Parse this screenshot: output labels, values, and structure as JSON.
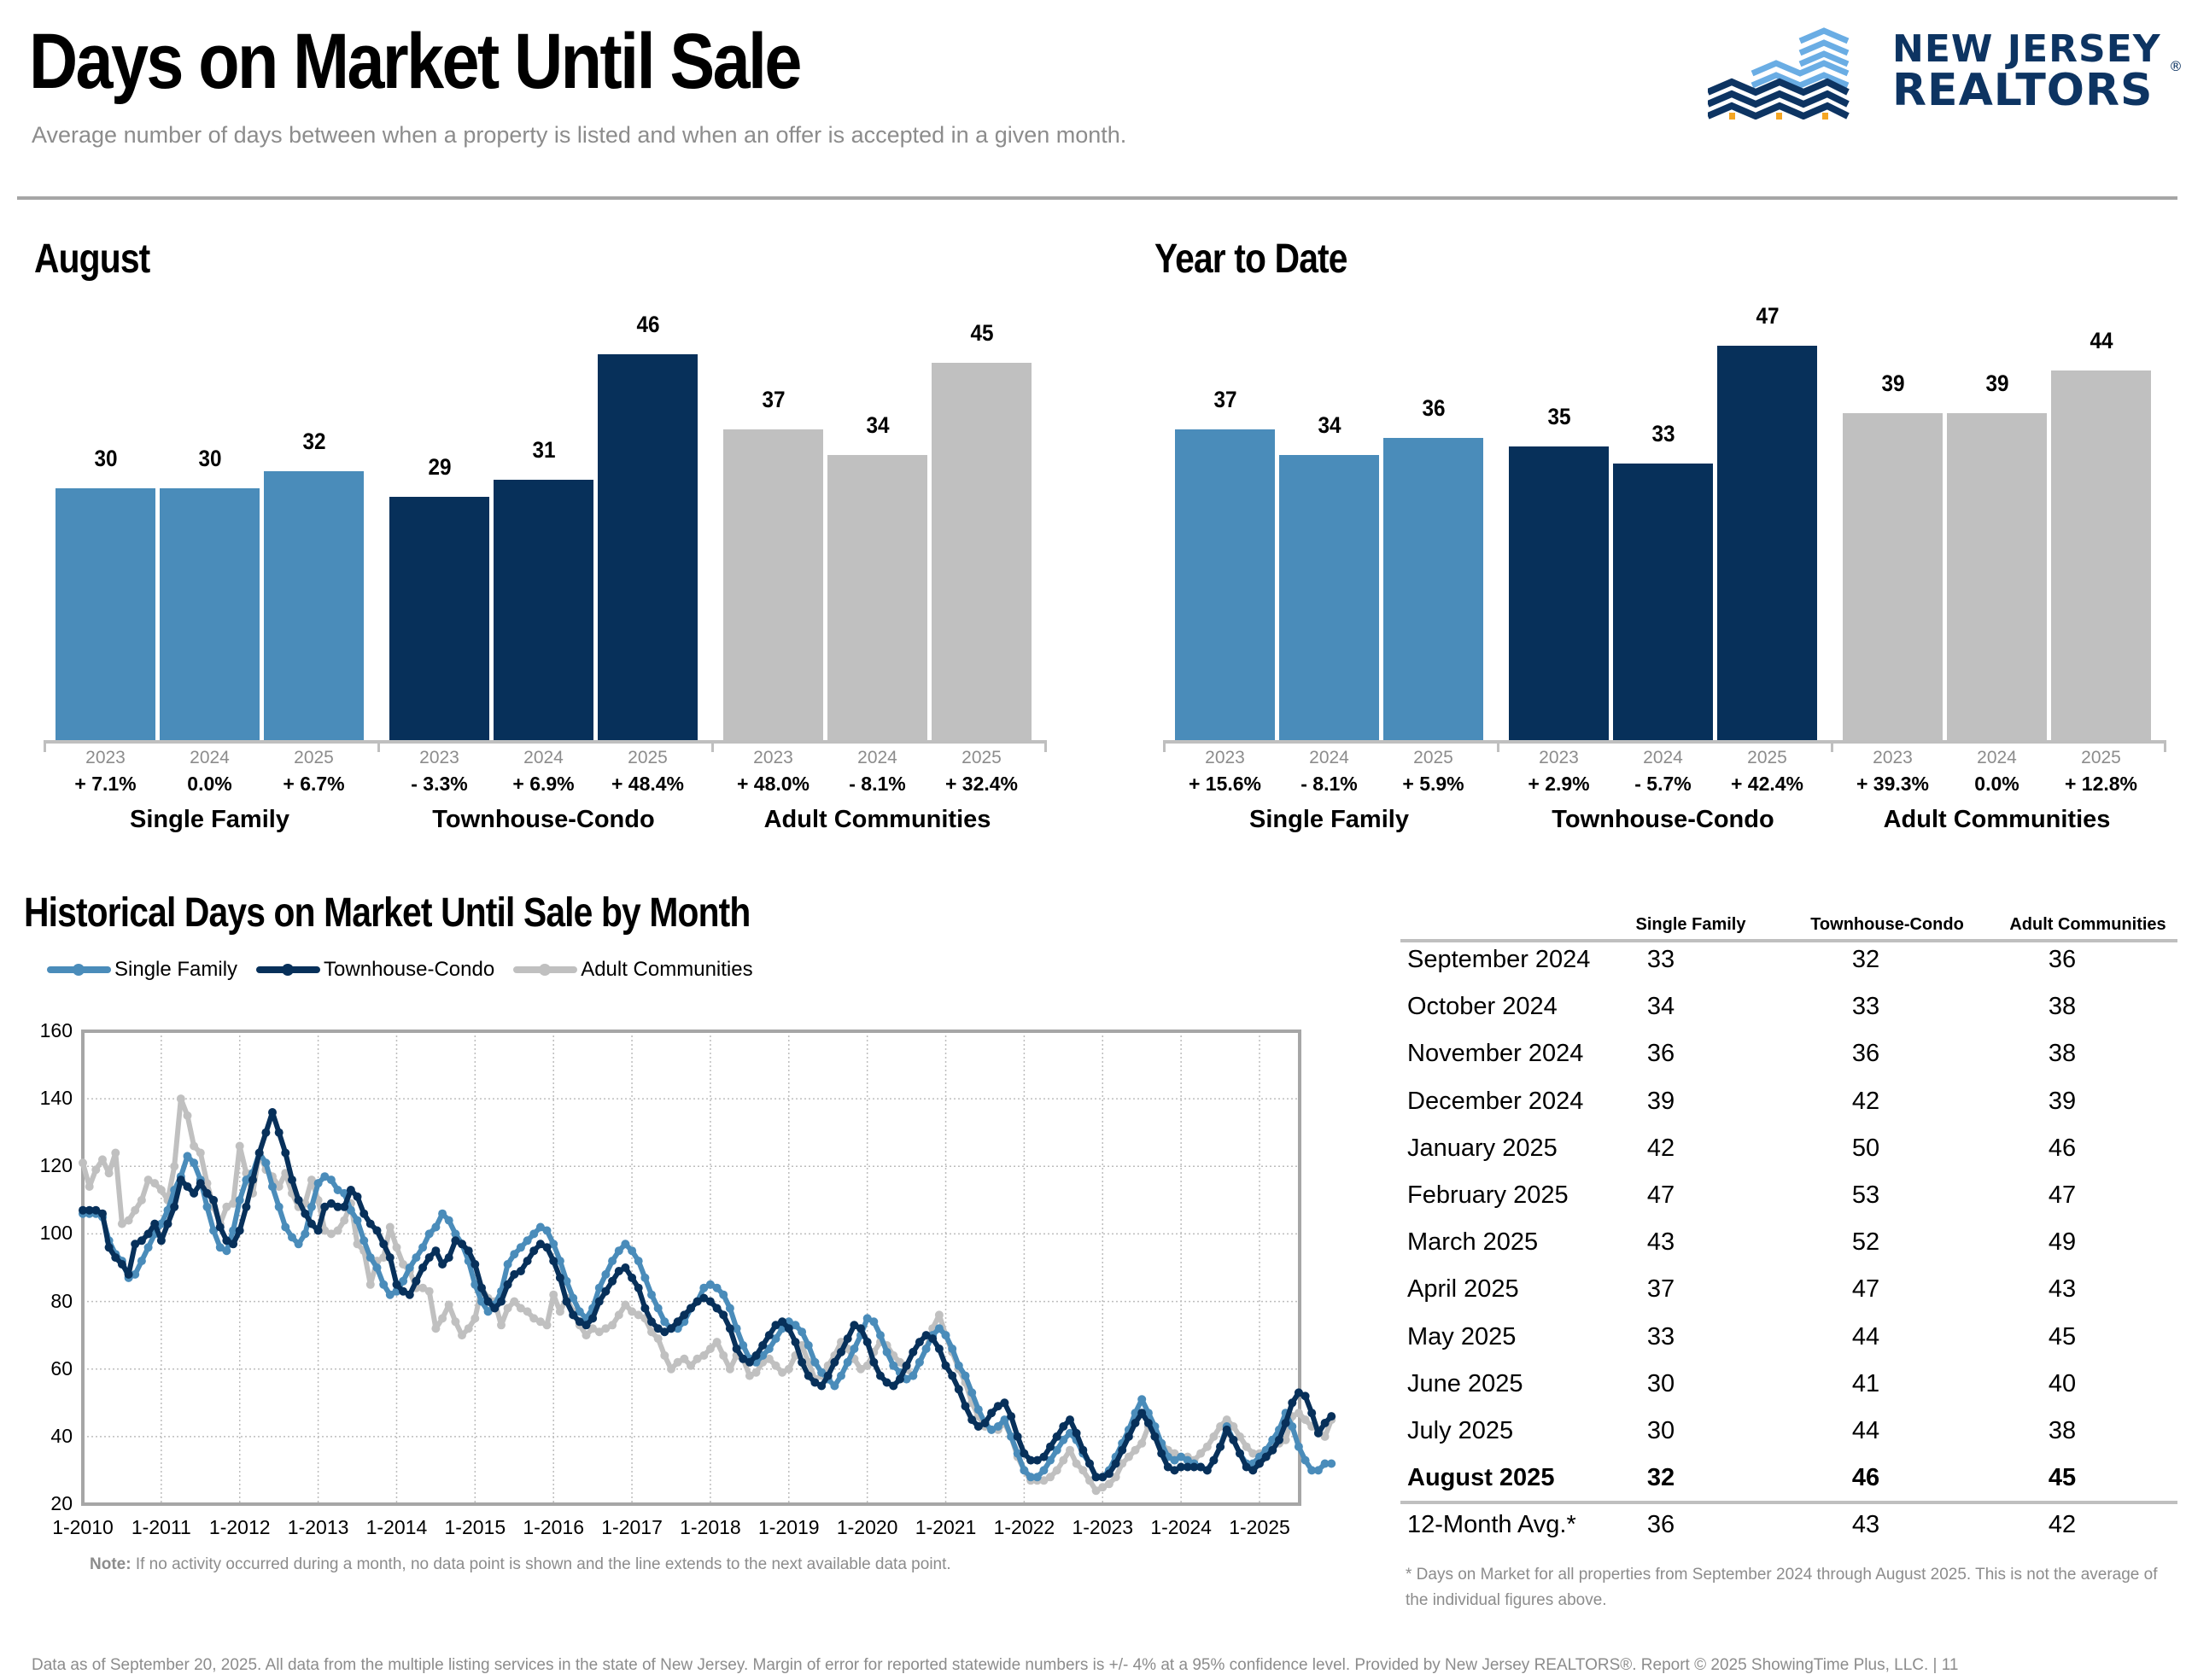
{
  "header": {
    "title": "Days on Market Until Sale",
    "subtitle": "Average number of days between when a property is listed and when an offer is accepted in a given month.",
    "logo": {
      "line1": "NEW JERSEY",
      "line2": "REALTORS",
      "mark": "®",
      "colors": {
        "navy": "#0d3462",
        "light_blue": "#6aade4",
        "gold": "#f5a623"
      }
    }
  },
  "colors": {
    "single_family": "#4a8cba",
    "townhouse_condo": "#07305a",
    "adult_communities": "#c0c0c0"
  },
  "chart_data": [
    {
      "id": "august",
      "type": "bar",
      "title": "August",
      "groups": [
        "Single Family",
        "Townhouse-Condo",
        "Adult Communities"
      ],
      "categories": [
        "2023",
        "2024",
        "2025"
      ],
      "series": [
        {
          "name": "Single Family",
          "values": [
            30,
            30,
            32
          ],
          "pct_change": [
            "+ 7.1%",
            "0.0%",
            "+ 6.7%"
          ]
        },
        {
          "name": "Townhouse-Condo",
          "values": [
            29,
            31,
            46
          ],
          "pct_change": [
            "- 3.3%",
            "+ 6.9%",
            "+ 48.4%"
          ]
        },
        {
          "name": "Adult Communities",
          "values": [
            37,
            34,
            45
          ],
          "pct_change": [
            "+ 48.0%",
            "- 8.1%",
            "+ 32.4%"
          ]
        }
      ],
      "ylim": [
        0,
        50
      ]
    },
    {
      "id": "ytd",
      "type": "bar",
      "title": "Year to Date",
      "groups": [
        "Single Family",
        "Townhouse-Condo",
        "Adult Communities"
      ],
      "categories": [
        "2023",
        "2024",
        "2025"
      ],
      "series": [
        {
          "name": "Single Family",
          "values": [
            37,
            34,
            36
          ],
          "pct_change": [
            "+ 15.6%",
            "- 8.1%",
            "+ 5.9%"
          ]
        },
        {
          "name": "Townhouse-Condo",
          "values": [
            35,
            33,
            47
          ],
          "pct_change": [
            "+ 2.9%",
            "- 5.7%",
            "+ 42.4%"
          ]
        },
        {
          "name": "Adult Communities",
          "values": [
            39,
            39,
            44
          ],
          "pct_change": [
            "+ 39.3%",
            "0.0%",
            "+ 12.8%"
          ]
        }
      ],
      "ylim": [
        0,
        50
      ]
    },
    {
      "id": "historical",
      "type": "line",
      "title": "Historical Days on Market Until Sale by Month",
      "x_start": "1-2010",
      "x_tick_labels": [
        "1-2010",
        "1-2011",
        "1-2012",
        "1-2013",
        "1-2014",
        "1-2015",
        "1-2016",
        "1-2017",
        "1-2018",
        "1-2019",
        "1-2020",
        "1-2021",
        "1-2022",
        "1-2023",
        "1-2024",
        "1-2025"
      ],
      "y_tick_labels": [
        "20",
        "40",
        "60",
        "80",
        "100",
        "120",
        "140",
        "160"
      ],
      "ylim": [
        20,
        160
      ],
      "grid": true,
      "legend": "top-left",
      "series": [
        {
          "name": "Single Family",
          "values": [
            106,
            106,
            106,
            105,
            98,
            94,
            92,
            87,
            88,
            92,
            96,
            100,
            103,
            107,
            113,
            117,
            123,
            121,
            116,
            108,
            101,
            96,
            95,
            101,
            110,
            116,
            118,
            124,
            121,
            114,
            108,
            102,
            99,
            97,
            100,
            108,
            115,
            117,
            116,
            113,
            112,
            107,
            104,
            98,
            93,
            90,
            85,
            82,
            83,
            86,
            90,
            93,
            96,
            100,
            102,
            106,
            104,
            100,
            97,
            92,
            85,
            80,
            77,
            79,
            83,
            91,
            94,
            96,
            98,
            100,
            102,
            101,
            97,
            92,
            86,
            81,
            77,
            75,
            78,
            84,
            88,
            92,
            95,
            97,
            95,
            92,
            87,
            82,
            78,
            74,
            72,
            72,
            74,
            78,
            80,
            84,
            85,
            84,
            82,
            78,
            72,
            67,
            63,
            62,
            64,
            66,
            69,
            72,
            74,
            73,
            71,
            67,
            62,
            59,
            57,
            55,
            58,
            62,
            66,
            70,
            75,
            74,
            70,
            65,
            61,
            59,
            57,
            58,
            62,
            66,
            70,
            72,
            70,
            66,
            61,
            58,
            53,
            48,
            44,
            42,
            43,
            45,
            40,
            35,
            30,
            28,
            28,
            30,
            33,
            36,
            39,
            41,
            39,
            35,
            32,
            28,
            28,
            30,
            34,
            38,
            42,
            47,
            51,
            47,
            43,
            38,
            34,
            33,
            34,
            33,
            32,
            31,
            30,
            33,
            37,
            43,
            39,
            35,
            32,
            32,
            34,
            36,
            39,
            42,
            47,
            43,
            37,
            33,
            30,
            30,
            32,
            32
          ],
          "note": "approximate monthly values read from plot, 2010-01 to 2025-08"
        },
        {
          "name": "Townhouse-Condo",
          "values": [
            107,
            107,
            107,
            106,
            96,
            93,
            91,
            88,
            97,
            98,
            100,
            103,
            98,
            103,
            108,
            116,
            114,
            112,
            115,
            112,
            110,
            102,
            98,
            97,
            101,
            108,
            116,
            124,
            130,
            136,
            130,
            124,
            116,
            110,
            106,
            103,
            101,
            108,
            109,
            108,
            108,
            113,
            111,
            106,
            103,
            101,
            97,
            93,
            85,
            83,
            82,
            86,
            90,
            93,
            95,
            91,
            93,
            98,
            97,
            95,
            91,
            84,
            80,
            78,
            80,
            85,
            88,
            89,
            92,
            95,
            97,
            96,
            92,
            87,
            80,
            76,
            74,
            73,
            75,
            80,
            83,
            86,
            89,
            90,
            87,
            84,
            78,
            74,
            72,
            71,
            72,
            74,
            76,
            78,
            80,
            81,
            80,
            78,
            76,
            72,
            66,
            63,
            62,
            64,
            67,
            70,
            73,
            74,
            72,
            68,
            62,
            58,
            56,
            55,
            58,
            62,
            65,
            69,
            73,
            72,
            68,
            62,
            58,
            56,
            55,
            57,
            61,
            65,
            68,
            70,
            69,
            66,
            61,
            58,
            54,
            49,
            45,
            43,
            44,
            47,
            49,
            50,
            46,
            40,
            35,
            33,
            33,
            34,
            37,
            40,
            43,
            45,
            41,
            36,
            32,
            28,
            28,
            29,
            32,
            36,
            40,
            44,
            47,
            44,
            40,
            35,
            31,
            30,
            31,
            31,
            31,
            31,
            30,
            33,
            37,
            42,
            39,
            35,
            31,
            30,
            32,
            34,
            36,
            39,
            44,
            50,
            53,
            52,
            47,
            41,
            44,
            46
          ],
          "note": "approximate monthly values read from plot, 2010-01 to 2025-08"
        },
        {
          "name": "Adult Communities",
          "values": [
            121,
            114,
            119,
            122,
            118,
            124,
            103,
            104,
            107,
            110,
            116,
            115,
            113,
            110,
            120,
            140,
            135,
            126,
            124,
            115,
            108,
            103,
            108,
            109,
            126,
            118,
            112,
            124,
            119,
            117,
            114,
            118,
            112,
            108,
            109,
            116,
            110,
            101,
            100,
            101,
            104,
            109,
            97,
            95,
            85,
            92,
            93,
            102,
            96,
            91,
            89,
            84,
            84,
            83,
            72,
            75,
            79,
            74,
            70,
            72,
            75,
            84,
            81,
            80,
            73,
            78,
            80,
            78,
            77,
            75,
            74,
            73,
            82,
            77,
            81,
            77,
            73,
            70,
            72,
            71,
            72,
            73,
            76,
            79,
            77,
            76,
            75,
            71,
            69,
            64,
            60,
            62,
            63,
            61,
            63,
            64,
            66,
            68,
            64,
            60,
            64,
            63,
            58,
            59,
            62,
            63,
            61,
            59,
            60,
            64,
            67,
            62,
            57,
            58,
            61,
            64,
            68,
            66,
            63,
            60,
            61,
            65,
            68,
            67,
            64,
            62,
            60,
            58,
            62,
            66,
            72,
            76,
            70,
            65,
            60,
            56,
            50,
            46,
            43,
            42,
            42,
            44,
            40,
            34,
            30,
            27,
            27,
            27,
            28,
            30,
            33,
            36,
            32,
            30,
            27,
            24,
            25,
            26,
            28,
            32,
            34,
            36,
            38,
            43,
            41,
            38,
            36,
            35,
            34,
            34,
            33,
            35,
            37,
            40,
            43,
            45,
            43,
            40,
            37,
            35,
            35,
            36,
            37,
            38,
            39,
            46,
            47,
            45,
            43,
            42,
            40,
            45
          ],
          "note": "approximate monthly values read from plot, 2010-01 to 2025-08"
        }
      ]
    }
  ],
  "table": {
    "columns": [
      "Single Family",
      "Townhouse-Condo",
      "Adult Communities"
    ],
    "rows": [
      {
        "label": "September 2024",
        "values": [
          "33",
          "32",
          "36"
        ]
      },
      {
        "label": "October 2024",
        "values": [
          "34",
          "33",
          "38"
        ]
      },
      {
        "label": "November 2024",
        "values": [
          "36",
          "36",
          "38"
        ]
      },
      {
        "label": "December 2024",
        "values": [
          "39",
          "42",
          "39"
        ]
      },
      {
        "label": "January 2025",
        "values": [
          "42",
          "50",
          "46"
        ]
      },
      {
        "label": "February 2025",
        "values": [
          "47",
          "53",
          "47"
        ]
      },
      {
        "label": "March 2025",
        "values": [
          "43",
          "52",
          "49"
        ]
      },
      {
        "label": "April 2025",
        "values": [
          "37",
          "47",
          "43"
        ]
      },
      {
        "label": "May 2025",
        "values": [
          "33",
          "44",
          "45"
        ]
      },
      {
        "label": "June 2025",
        "values": [
          "30",
          "41",
          "40"
        ]
      },
      {
        "label": "July 2025",
        "values": [
          "30",
          "44",
          "38"
        ]
      },
      {
        "label": "August 2025",
        "values": [
          "32",
          "46",
          "45"
        ],
        "bold": true
      }
    ],
    "total": {
      "label": "12-Month Avg.*",
      "values": [
        "36",
        "43",
        "42"
      ]
    },
    "footnote": "* Days on Market for all properties from September 2024 through August 2025. This is not the average of the individual figures above."
  },
  "note": {
    "prefix": "Note:",
    "text": " If no activity occurred during a month, no data point is shown and the line extends to the next available data point."
  },
  "footer": "Data as of September 20, 2025. All data from the multiple listing services in the state of New Jersey. Margin of error for reported statewide numbers is +/- 4% at a 95% confidence level. Provided by New Jersey REALTORS®. Report © 2025 ShowingTime Plus, LLC. |  11"
}
